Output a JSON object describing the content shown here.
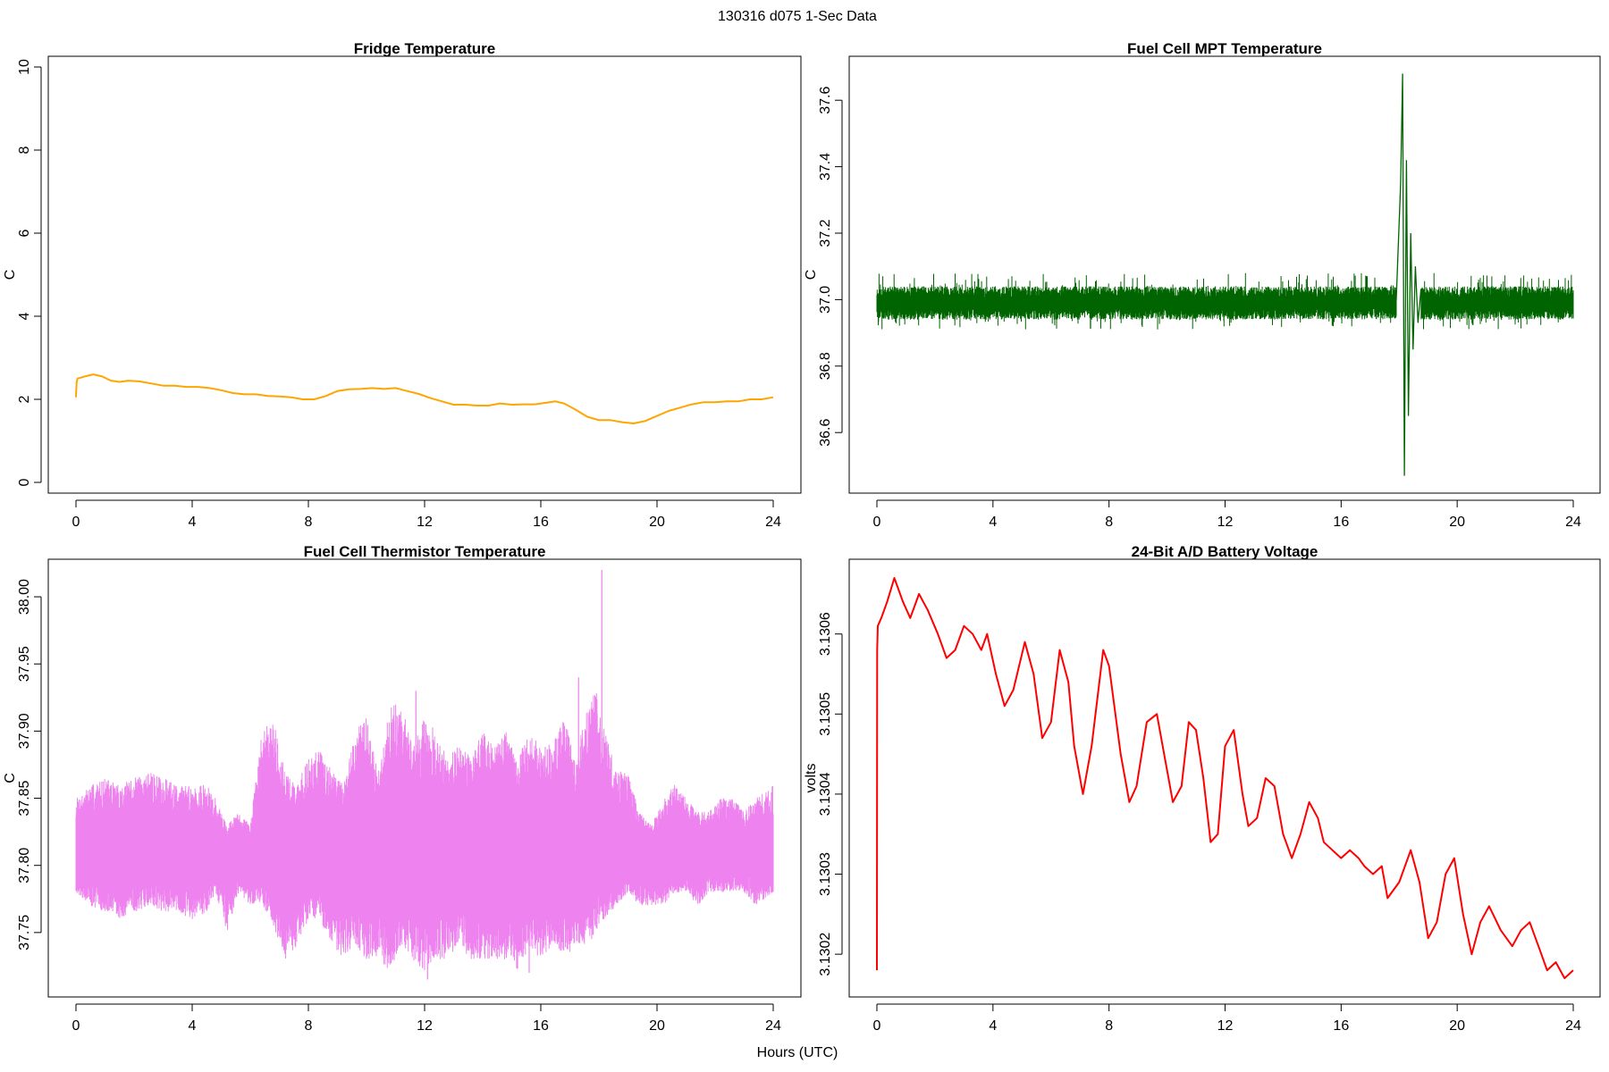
{
  "main_title": "130316   d075   1-Sec Data",
  "xlabel": "Hours (UTC)",
  "chart_data": [
    {
      "type": "line",
      "title": "Fridge Temperature",
      "xlabel": "",
      "ylabel": "C",
      "xlim": [
        0,
        24
      ],
      "ylim": [
        0,
        10
      ],
      "xticks": [
        0,
        4,
        8,
        12,
        16,
        20,
        24
      ],
      "yticks": [
        0,
        2,
        4,
        6,
        8,
        10
      ],
      "ytick_labels": [
        "0",
        "2",
        "4",
        "6",
        "8",
        "10"
      ],
      "color": "#FFA500",
      "series": [
        {
          "x": [
            0,
            0.02,
            0.05,
            0.3,
            0.6,
            0.9,
            1.2,
            1.5,
            1.8,
            2.2,
            2.6,
            3.0,
            3.4,
            3.8,
            4.2,
            4.6,
            5.0,
            5.4,
            5.8,
            6.2,
            6.6,
            7.0,
            7.4,
            7.8,
            8.2,
            8.6,
            9.0,
            9.4,
            9.8,
            10.2,
            10.6,
            11.0,
            11.4,
            11.8,
            12.2,
            12.6,
            13.0,
            13.4,
            13.8,
            14.2,
            14.6,
            15.0,
            15.4,
            15.8,
            16.2,
            16.5,
            16.8,
            17.2,
            17.6,
            18.0,
            18.4,
            18.8,
            19.2,
            19.6,
            20.0,
            20.4,
            20.8,
            21.2,
            21.6,
            22.0,
            22.4,
            22.8,
            23.2,
            23.6,
            24.0
          ],
          "y": [
            2.05,
            2.4,
            2.5,
            2.55,
            2.6,
            2.55,
            2.45,
            2.42,
            2.45,
            2.43,
            2.38,
            2.33,
            2.33,
            2.3,
            2.3,
            2.27,
            2.22,
            2.15,
            2.12,
            2.12,
            2.08,
            2.07,
            2.05,
            2.0,
            2.0,
            2.08,
            2.2,
            2.24,
            2.25,
            2.27,
            2.25,
            2.27,
            2.2,
            2.13,
            2.03,
            1.95,
            1.87,
            1.87,
            1.85,
            1.85,
            1.9,
            1.87,
            1.88,
            1.88,
            1.92,
            1.95,
            1.9,
            1.75,
            1.58,
            1.5,
            1.5,
            1.45,
            1.42,
            1.48,
            1.6,
            1.72,
            1.8,
            1.88,
            1.93,
            1.93,
            1.95,
            1.95,
            2.0,
            2.0,
            2.05
          ]
        }
      ]
    },
    {
      "type": "line",
      "title": "Fuel Cell MPT Temperature",
      "xlabel": "",
      "ylabel": "C",
      "xlim": [
        0,
        24
      ],
      "ylim": [
        36.45,
        37.7
      ],
      "xticks": [
        0,
        4,
        8,
        12,
        16,
        20,
        24
      ],
      "yticks": [
        36.6,
        36.8,
        37.0,
        37.2,
        37.4,
        37.6
      ],
      "ytick_labels": [
        "36.6",
        "36.8",
        "37.0",
        "37.2",
        "37.4",
        "37.6"
      ],
      "color": "#006400",
      "baseline": 36.99,
      "noise_band": 0.05,
      "events": [
        {
          "x": 17.9,
          "y": 37.0
        },
        {
          "x": 18.05,
          "y": 37.35
        },
        {
          "x": 18.12,
          "y": 37.68
        },
        {
          "x": 18.18,
          "y": 36.47
        },
        {
          "x": 18.25,
          "y": 37.42
        },
        {
          "x": 18.32,
          "y": 36.65
        },
        {
          "x": 18.4,
          "y": 37.2
        },
        {
          "x": 18.48,
          "y": 36.85
        },
        {
          "x": 18.56,
          "y": 37.1
        },
        {
          "x": 18.65,
          "y": 36.93
        },
        {
          "x": 18.75,
          "y": 37.03
        }
      ]
    },
    {
      "type": "line",
      "title": "Fuel Cell Thermistor Temperature",
      "xlabel": "",
      "ylabel": "C",
      "xlim": [
        0,
        24
      ],
      "ylim": [
        37.71,
        38.02
      ],
      "xticks": [
        0,
        4,
        8,
        12,
        16,
        20,
        24
      ],
      "yticks": [
        37.75,
        37.8,
        37.85,
        37.9,
        37.95,
        38.0
      ],
      "ytick_labels": [
        "37.75",
        "37.80",
        "37.85",
        "37.90",
        "37.95",
        "38.00"
      ],
      "color": "#EE82EE",
      "center": 37.81,
      "envelope": {
        "x": [
          0,
          0.5,
          1,
          1.5,
          2,
          2.5,
          3,
          3.5,
          4,
          4.5,
          4.8,
          5.2,
          5.6,
          6.0,
          6.4,
          6.8,
          7.2,
          7.6,
          8.0,
          8.4,
          8.8,
          9.2,
          9.6,
          10.0,
          10.4,
          10.8,
          11.2,
          11.6,
          12.0,
          12.4,
          12.8,
          13.2,
          13.6,
          14.0,
          14.4,
          14.8,
          15.2,
          15.6,
          16.0,
          16.4,
          16.8,
          17.2,
          17.6,
          17.9,
          18.2,
          18.6,
          19.0,
          19.4,
          19.8,
          20.2,
          20.6,
          21.0,
          21.4,
          21.8,
          22.2,
          22.6,
          23.0,
          23.4,
          24.0
        ],
        "upper": [
          37.85,
          37.86,
          37.865,
          37.86,
          37.865,
          37.87,
          37.865,
          37.86,
          37.86,
          37.86,
          37.85,
          37.83,
          37.84,
          37.83,
          37.9,
          37.91,
          37.87,
          37.86,
          37.88,
          37.89,
          37.87,
          37.86,
          37.9,
          37.91,
          37.87,
          37.92,
          37.92,
          37.89,
          37.91,
          37.9,
          37.88,
          37.89,
          37.88,
          37.9,
          37.89,
          37.9,
          37.88,
          37.9,
          37.89,
          37.89,
          37.91,
          37.88,
          37.92,
          37.93,
          37.9,
          37.87,
          37.87,
          37.84,
          37.83,
          37.85,
          37.86,
          37.85,
          37.84,
          37.84,
          37.85,
          37.85,
          37.84,
          37.85,
          37.86
        ],
        "lower": [
          37.78,
          37.77,
          37.765,
          37.76,
          37.765,
          37.77,
          37.765,
          37.765,
          37.76,
          37.765,
          37.78,
          37.75,
          37.78,
          37.77,
          37.77,
          37.75,
          37.73,
          37.74,
          37.76,
          37.76,
          37.74,
          37.73,
          37.74,
          37.73,
          37.73,
          37.72,
          37.74,
          37.73,
          37.72,
          37.73,
          37.73,
          37.74,
          37.73,
          37.73,
          37.73,
          37.73,
          37.72,
          37.74,
          37.73,
          37.74,
          37.73,
          37.74,
          37.74,
          37.75,
          37.76,
          37.77,
          37.78,
          37.77,
          37.77,
          37.77,
          37.78,
          37.78,
          37.77,
          37.78,
          37.78,
          37.78,
          37.78,
          37.77,
          37.78
        ]
      },
      "spikes": [
        {
          "x": 18.1,
          "y": 38.02
        },
        {
          "x": 12.1,
          "y": 37.715
        },
        {
          "x": 11.7,
          "y": 37.93
        },
        {
          "x": 17.3,
          "y": 37.94
        },
        {
          "x": 15.6,
          "y": 37.72
        }
      ]
    },
    {
      "type": "line",
      "title": "24-Bit A/D Battery Voltage",
      "xlabel": "",
      "ylabel": "volts",
      "xlim": [
        0,
        24
      ],
      "ylim": [
        3.13016,
        3.13068
      ],
      "xticks": [
        0,
        4,
        8,
        12,
        16,
        20,
        24
      ],
      "yticks": [
        3.1302,
        3.1303,
        3.1304,
        3.1305,
        3.1306
      ],
      "ytick_labels": [
        "3.1302",
        "3.1303",
        "3.1304",
        "3.1305",
        "3.1306"
      ],
      "color": "#FF0000",
      "series": [
        {
          "x": [
            0,
            0.01,
            0.03,
            0.15,
            0.35,
            0.6,
            0.9,
            1.15,
            1.45,
            1.75,
            2.1,
            2.4,
            2.7,
            3.0,
            3.3,
            3.6,
            3.8,
            4.1,
            4.4,
            4.7,
            5.1,
            5.4,
            5.7,
            6.0,
            6.3,
            6.6,
            6.8,
            7.1,
            7.4,
            7.8,
            8.0,
            8.4,
            8.7,
            8.95,
            9.3,
            9.65,
            9.9,
            10.2,
            10.5,
            10.75,
            11.0,
            11.25,
            11.5,
            11.75,
            12.0,
            12.3,
            12.6,
            12.8,
            13.1,
            13.4,
            13.7,
            14.0,
            14.3,
            14.6,
            14.9,
            15.2,
            15.4,
            15.7,
            16.0,
            16.3,
            16.6,
            16.8,
            17.1,
            17.4,
            17.6,
            18.0,
            18.4,
            18.7,
            19.0,
            19.3,
            19.6,
            19.9,
            20.2,
            20.5,
            20.8,
            21.1,
            21.5,
            21.9,
            22.2,
            22.5,
            22.8,
            23.1,
            23.4,
            23.7,
            24.0
          ],
          "y": [
            3.13018,
            3.13058,
            3.13061,
            3.13062,
            3.13064,
            3.13067,
            3.13064,
            3.13062,
            3.13065,
            3.13063,
            3.1306,
            3.13057,
            3.13058,
            3.13061,
            3.1306,
            3.13058,
            3.1306,
            3.13055,
            3.13051,
            3.13053,
            3.13059,
            3.13055,
            3.13047,
            3.13049,
            3.13058,
            3.13054,
            3.13046,
            3.1304,
            3.13046,
            3.13058,
            3.13056,
            3.13045,
            3.13039,
            3.13041,
            3.13049,
            3.1305,
            3.13045,
            3.13039,
            3.13041,
            3.13049,
            3.13048,
            3.13042,
            3.13034,
            3.13035,
            3.13046,
            3.13048,
            3.1304,
            3.13036,
            3.13037,
            3.13042,
            3.13041,
            3.13035,
            3.13032,
            3.13035,
            3.13039,
            3.13037,
            3.13034,
            3.13033,
            3.13032,
            3.13033,
            3.13032,
            3.13031,
            3.1303,
            3.13031,
            3.13027,
            3.13029,
            3.13033,
            3.13029,
            3.13022,
            3.13024,
            3.1303,
            3.13032,
            3.13025,
            3.1302,
            3.13024,
            3.13026,
            3.13023,
            3.13021,
            3.13023,
            3.13024,
            3.13021,
            3.13018,
            3.13019,
            3.13017,
            3.13018
          ]
        }
      ]
    }
  ]
}
